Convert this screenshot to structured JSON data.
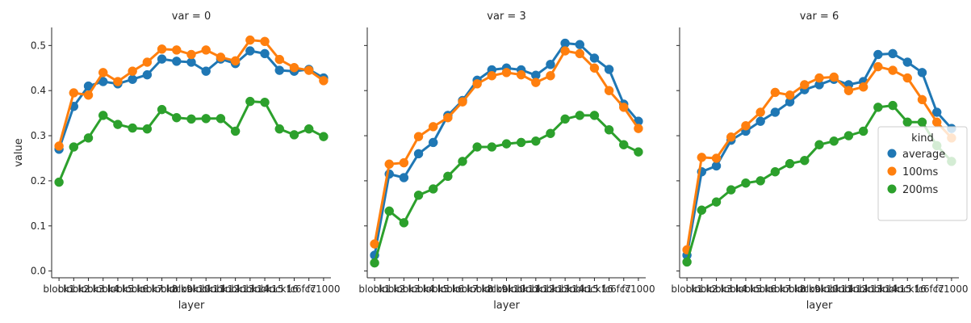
{
  "chart_data": {
    "type": "line",
    "ylabel": "value",
    "xlabel": "layer",
    "ylim": [
      -0.015,
      0.54
    ],
    "yticks": [
      "0.0",
      "0.1",
      "0.2",
      "0.3",
      "0.4",
      "0.5"
    ],
    "categories": [
      "block1",
      "block2",
      "block3",
      "block4",
      "block5",
      "block6",
      "block7",
      "block8",
      "block9",
      "block10",
      "block11",
      "block12",
      "block13",
      "block14",
      "block15",
      "block16",
      "fc6",
      "fc7",
      "fc1000"
    ],
    "legend": {
      "title": "kind",
      "placement": "right"
    },
    "colors": {
      "average": "#1f77b4",
      "100ms": "#ff7f0e",
      "200ms": "#2ca02c"
    },
    "panels": [
      {
        "title": "var = 0",
        "series": [
          {
            "name": "average",
            "values": [
              0.27,
              0.365,
              0.41,
              0.42,
              0.415,
              0.425,
              0.435,
              0.47,
              0.465,
              0.463,
              0.443,
              0.47,
              0.46,
              0.488,
              0.482,
              0.445,
              0.443,
              0.447,
              0.428
            ]
          },
          {
            "name": "100ms",
            "values": [
              0.277,
              0.395,
              0.39,
              0.44,
              0.42,
              0.443,
              0.463,
              0.492,
              0.49,
              0.48,
              0.49,
              0.474,
              0.466,
              0.512,
              0.509,
              0.469,
              0.451,
              0.445,
              0.422
            ]
          },
          {
            "name": "200ms",
            "values": [
              0.197,
              0.275,
              0.295,
              0.345,
              0.325,
              0.317,
              0.315,
              0.358,
              0.34,
              0.337,
              0.338,
              0.338,
              0.31,
              0.376,
              0.374,
              0.315,
              0.302,
              0.315,
              0.298
            ]
          }
        ]
      },
      {
        "title": "var = 3",
        "series": [
          {
            "name": "average",
            "values": [
              0.035,
              0.215,
              0.207,
              0.26,
              0.285,
              0.345,
              0.378,
              0.423,
              0.446,
              0.45,
              0.446,
              0.434,
              0.458,
              0.505,
              0.502,
              0.472,
              0.447,
              0.37,
              0.332
            ]
          },
          {
            "name": "100ms",
            "values": [
              0.06,
              0.237,
              0.24,
              0.298,
              0.32,
              0.34,
              0.375,
              0.415,
              0.433,
              0.44,
              0.435,
              0.418,
              0.433,
              0.488,
              0.482,
              0.45,
              0.4,
              0.363,
              0.316
            ]
          },
          {
            "name": "200ms",
            "values": [
              0.018,
              0.133,
              0.107,
              0.168,
              0.182,
              0.21,
              0.243,
              0.275,
              0.275,
              0.282,
              0.285,
              0.288,
              0.305,
              0.337,
              0.345,
              0.345,
              0.313,
              0.28,
              0.264
            ]
          }
        ]
      },
      {
        "title": "var = 6",
        "series": [
          {
            "name": "average",
            "values": [
              0.035,
              0.22,
              0.233,
              0.29,
              0.31,
              0.332,
              0.352,
              0.375,
              0.402,
              0.413,
              0.425,
              0.413,
              0.42,
              0.48,
              0.482,
              0.463,
              0.44,
              0.352,
              0.316
            ]
          },
          {
            "name": "100ms",
            "values": [
              0.047,
              0.252,
              0.25,
              0.297,
              0.322,
              0.352,
              0.396,
              0.39,
              0.413,
              0.428,
              0.43,
              0.4,
              0.408,
              0.453,
              0.445,
              0.428,
              0.38,
              0.33,
              0.295
            ]
          },
          {
            "name": "200ms",
            "values": [
              0.02,
              0.135,
              0.153,
              0.18,
              0.195,
              0.2,
              0.22,
              0.238,
              0.245,
              0.28,
              0.288,
              0.3,
              0.31,
              0.363,
              0.367,
              0.33,
              0.33,
              0.278,
              0.243
            ]
          }
        ]
      }
    ]
  }
}
